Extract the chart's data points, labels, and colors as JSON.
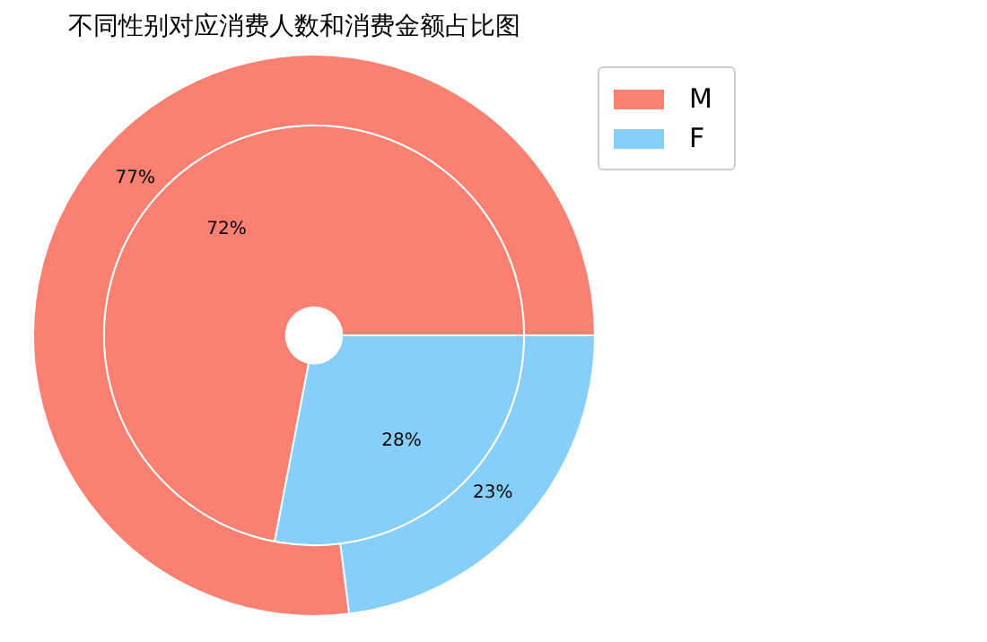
{
  "chart_data": {
    "type": "donut",
    "title": "不同性别对应消费人数和消费金额占比图",
    "categories": [
      "M",
      "F"
    ],
    "colors": [
      "#fa8072",
      "#87cefa"
    ],
    "legend": "top right",
    "series": [
      {
        "values": [
          77,
          23
        ],
        "value_labels": [
          "77%",
          "23%"
        ]
      },
      {
        "values": [
          72,
          28
        ],
        "value_labels": [
          "72%",
          "28%"
        ]
      }
    ]
  }
}
